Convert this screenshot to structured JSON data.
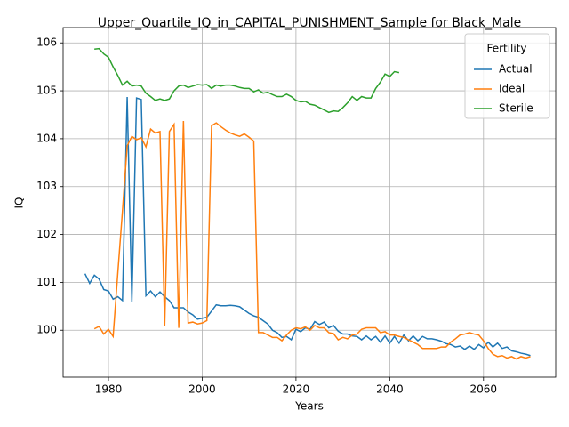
{
  "chart_data": {
    "type": "line",
    "title": "Upper_Quartile_IQ_in_CAPITAL_PUNISHMENT_Sample for Black_Male",
    "x_label": "Years",
    "y_label": "IQ",
    "legend_title": "Fertility",
    "legend_loc": "upper right",
    "grid": true,
    "xlim": [
      1970.33,
      2075.4
    ],
    "ylim": [
      99.02,
      106.32
    ],
    "xticks": [
      1980,
      2000,
      2020,
      2040,
      2060
    ],
    "yticks": [
      100,
      101,
      102,
      103,
      104,
      105,
      106
    ],
    "series": [
      {
        "name": "Actual",
        "color": "#1f77b4",
        "x": [
          1975,
          1976,
          1977,
          1978,
          1979,
          1980,
          1981,
          1982,
          1983,
          1984,
          1985,
          1986,
          1987,
          1988,
          1989,
          1990,
          1991,
          1992,
          1993,
          1994,
          1995,
          1996,
          1997,
          1998,
          1999,
          2000,
          2001,
          2002,
          2003,
          2004,
          2005,
          2006,
          2007,
          2008,
          2009,
          2010,
          2011,
          2012,
          2013,
          2014,
          2015,
          2016,
          2017,
          2018,
          2019,
          2020,
          2021,
          2022,
          2023,
          2024,
          2025,
          2026,
          2027,
          2028,
          2029,
          2030,
          2031,
          2032,
          2033,
          2034,
          2035,
          2036,
          2037,
          2038,
          2039,
          2040,
          2041,
          2042,
          2043,
          2044,
          2045,
          2046,
          2047,
          2048,
          2049,
          2050,
          2051,
          2052,
          2053,
          2054,
          2055,
          2056,
          2057,
          2058,
          2059,
          2060,
          2061,
          2062,
          2063,
          2064,
          2065,
          2066,
          2067,
          2068,
          2069,
          2070
        ],
        "values": [
          101.18,
          100.98,
          101.15,
          101.07,
          100.85,
          100.82,
          100.65,
          100.7,
          100.62,
          104.87,
          100.58,
          104.85,
          104.82,
          100.72,
          100.82,
          100.7,
          100.8,
          100.7,
          100.62,
          100.47,
          100.47,
          100.47,
          100.38,
          100.32,
          100.23,
          100.25,
          100.27,
          100.4,
          100.53,
          100.51,
          100.51,
          100.52,
          100.51,
          100.49,
          100.42,
          100.35,
          100.3,
          100.27,
          100.2,
          100.13,
          100.0,
          99.95,
          99.85,
          99.87,
          99.8,
          100.02,
          99.97,
          100.05,
          100.02,
          100.18,
          100.12,
          100.17,
          100.05,
          100.1,
          99.98,
          99.92,
          99.92,
          99.88,
          99.87,
          99.8,
          99.88,
          99.8,
          99.87,
          99.75,
          99.88,
          99.73,
          99.87,
          99.73,
          99.9,
          99.78,
          99.88,
          99.78,
          99.87,
          99.82,
          99.82,
          99.8,
          99.77,
          99.72,
          99.7,
          99.65,
          99.67,
          99.6,
          99.67,
          99.6,
          99.7,
          99.63,
          99.75,
          99.65,
          99.73,
          99.62,
          99.65,
          99.57,
          99.55,
          99.52,
          99.5,
          99.47
        ]
      },
      {
        "name": "Ideal",
        "color": "#ff7f0e",
        "x": [
          1977,
          1978,
          1979,
          1980,
          1981,
          1982,
          1983,
          1984,
          1985,
          1986,
          1987,
          1988,
          1989,
          1990,
          1991,
          1992,
          1993,
          1994,
          1995,
          1996,
          1997,
          1998,
          1999,
          2000,
          2001,
          2002,
          2003,
          2004,
          2005,
          2006,
          2007,
          2008,
          2009,
          2010,
          2011,
          2012,
          2013,
          2014,
          2015,
          2016,
          2017,
          2018,
          2019,
          2020,
          2021,
          2022,
          2023,
          2024,
          2025,
          2026,
          2027,
          2028,
          2029,
          2030,
          2031,
          2032,
          2033,
          2034,
          2035,
          2036,
          2037,
          2038,
          2039,
          2040,
          2041,
          2042,
          2043,
          2044,
          2045,
          2046,
          2047,
          2048,
          2049,
          2050,
          2051,
          2052,
          2053,
          2054,
          2055,
          2056,
          2057,
          2058,
          2059,
          2060,
          2061,
          2062,
          2063,
          2064,
          2065,
          2066,
          2067,
          2068,
          2069,
          2070
        ],
        "values": [
          100.03,
          100.08,
          99.92,
          100.02,
          99.87,
          101.2,
          102.5,
          103.85,
          104.05,
          103.98,
          104.02,
          103.83,
          104.2,
          104.12,
          104.15,
          100.08,
          104.15,
          104.3,
          100.05,
          104.37,
          100.15,
          100.17,
          100.13,
          100.15,
          100.2,
          104.27,
          104.33,
          104.25,
          104.18,
          104.12,
          104.08,
          104.05,
          104.1,
          104.03,
          103.95,
          99.95,
          99.95,
          99.9,
          99.85,
          99.85,
          99.78,
          99.9,
          100.0,
          100.05,
          100.03,
          100.07,
          100.0,
          100.1,
          100.05,
          100.05,
          99.95,
          99.93,
          99.8,
          99.85,
          99.82,
          99.9,
          99.92,
          100.02,
          100.05,
          100.05,
          100.05,
          99.95,
          99.97,
          99.9,
          99.9,
          99.87,
          99.85,
          99.8,
          99.75,
          99.7,
          99.62,
          99.62,
          99.62,
          99.62,
          99.65,
          99.65,
          99.75,
          99.82,
          99.9,
          99.92,
          99.95,
          99.92,
          99.9,
          99.78,
          99.62,
          99.5,
          99.45,
          99.47,
          99.42,
          99.45,
          99.4,
          99.45,
          99.42,
          99.45
        ]
      },
      {
        "name": "Sterile",
        "color": "#2ca02c",
        "x": [
          1977,
          1978,
          1979,
          1980,
          1981,
          1982,
          1983,
          1984,
          1985,
          1986,
          1987,
          1988,
          1989,
          1990,
          1991,
          1992,
          1993,
          1994,
          1995,
          1996,
          1997,
          1998,
          1999,
          2000,
          2001,
          2002,
          2003,
          2004,
          2005,
          2006,
          2007,
          2008,
          2009,
          2010,
          2011,
          2012,
          2013,
          2014,
          2015,
          2016,
          2017,
          2018,
          2019,
          2020,
          2021,
          2022,
          2023,
          2024,
          2025,
          2026,
          2027,
          2028,
          2029,
          2030,
          2031,
          2032,
          2033,
          2034,
          2035,
          2036,
          2037,
          2038,
          2039,
          2040,
          2041,
          2042
        ],
        "values": [
          105.87,
          105.88,
          105.77,
          105.7,
          105.5,
          105.32,
          105.12,
          105.2,
          105.1,
          105.12,
          105.1,
          104.95,
          104.88,
          104.8,
          104.83,
          104.8,
          104.83,
          105.0,
          105.1,
          105.12,
          105.07,
          105.1,
          105.13,
          105.12,
          105.13,
          105.05,
          105.12,
          105.1,
          105.12,
          105.12,
          105.1,
          105.07,
          105.05,
          105.05,
          104.98,
          105.02,
          104.95,
          104.97,
          104.92,
          104.88,
          104.88,
          104.93,
          104.88,
          104.8,
          104.77,
          104.78,
          104.72,
          104.7,
          104.65,
          104.6,
          104.55,
          104.58,
          104.57,
          104.65,
          104.75,
          104.88,
          104.8,
          104.88,
          104.85,
          104.85,
          105.05,
          105.18,
          105.35,
          105.3,
          105.4,
          105.38
        ]
      }
    ]
  }
}
